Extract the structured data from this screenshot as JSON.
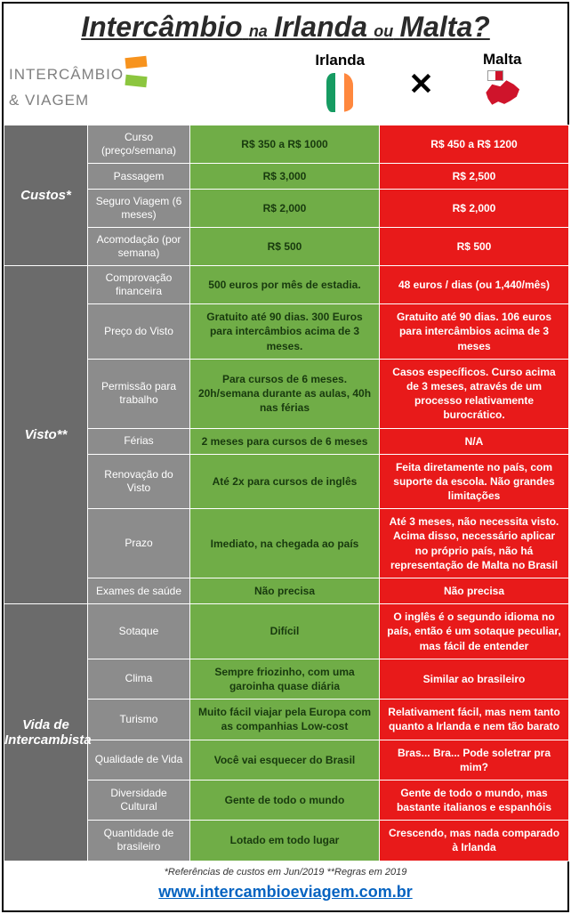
{
  "title": {
    "w1": "Intercâmbio",
    "w2": "na",
    "w3": "Irlanda",
    "w4": "ou",
    "w5": "Malta?"
  },
  "logo": {
    "line1": "INTERCÂMBIO",
    "line2": "& VIAGEM"
  },
  "countries": {
    "ireland": "Irlanda",
    "malta": "Malta"
  },
  "sections": [
    {
      "name": "Custos*",
      "rows": [
        {
          "attr": "Curso (preço/semana)",
          "ir": "R$ 350 a R$ 1000",
          "ma": "R$ 450 a R$ 1200"
        },
        {
          "attr": "Passagem",
          "ir": "R$ 3,000",
          "ma": "R$ 2,500"
        },
        {
          "attr": "Seguro Viagem (6 meses)",
          "ir": "R$ 2,000",
          "ma": "R$ 2,000"
        },
        {
          "attr": "Acomodação (por semana)",
          "ir": "R$ 500",
          "ma": "R$ 500"
        }
      ]
    },
    {
      "name": "Visto**",
      "rows": [
        {
          "attr": "Comprovação financeira",
          "ir": "500 euros por mês de estadia.",
          "ma": "48 euros / dias (ou 1,440/mês)"
        },
        {
          "attr": "Preço do Visto",
          "ir": "Gratuito até 90 dias. 300 Euros para intercâmbios acima de 3 meses.",
          "ma": "Gratuito até 90 dias. 106 euros para intercâmbios acima de 3 meses"
        },
        {
          "attr": "Permissão para trabalho",
          "ir": "Para cursos de 6 meses. 20h/semana durante as aulas, 40h nas férias",
          "ma": "Casos específicos. Curso acima de 3 meses, através de um processo relativamente burocrático."
        },
        {
          "attr": "Férias",
          "ir": "2 meses para cursos de 6 meses",
          "ma": "N/A"
        },
        {
          "attr": "Renovação do Visto",
          "ir": "Até 2x para cursos de inglês",
          "ma": "Feita diretamente no país, com suporte da escola. Não grandes limitações"
        },
        {
          "attr": "Prazo",
          "ir": "Imediato, na chegada ao país",
          "ma": "Até 3 meses, não necessita visto. Acima disso, necessário aplicar no próprio país, não há representação de Malta no Brasil"
        },
        {
          "attr": "Exames de saúde",
          "ir": "Não precisa",
          "ma": "Não precisa"
        }
      ]
    },
    {
      "name": "Vida de Intercambista",
      "rows": [
        {
          "attr": "Sotaque",
          "ir": "Difícil",
          "ma": "O inglês é o segundo idioma no país, então é um sotaque peculiar, mas fácil de entender"
        },
        {
          "attr": "Clima",
          "ir": "Sempre friozinho, com uma garoinha quase diária",
          "ma": "Similar ao brasileiro"
        },
        {
          "attr": "Turismo",
          "ir": "Muito fácil viajar pela Europa com as companhias Low-cost",
          "ma": "Relativament fácil, mas nem tanto quanto a Irlanda e nem tão barato"
        },
        {
          "attr": "Qualidade de Vida",
          "ir": "Você vai esquecer do Brasil",
          "ma": "Bras... Bra... Pode soletrar pra mim?"
        },
        {
          "attr": "Diversidade Cultural",
          "ir": "Gente de todo o mundo",
          "ma": "Gente de todo o mundo, mas bastante italianos e espanhóis"
        },
        {
          "attr": "Quantidade de brasileiro",
          "ir": "Lotado em todo lugar",
          "ma": "Crescendo, mas nada comparado à Irlanda"
        }
      ]
    }
  ],
  "footnotes": "*Referências de custos em Jun/2019   **Regras em 2019",
  "url": "www.intercambioeviagem.com.br",
  "colors": {
    "ireland_bg": "#70ad47",
    "malta_bg": "#e81a1a",
    "section_bg": "#6b6b6b",
    "attr_bg": "#8c8c8c",
    "link": "#0563c1"
  }
}
